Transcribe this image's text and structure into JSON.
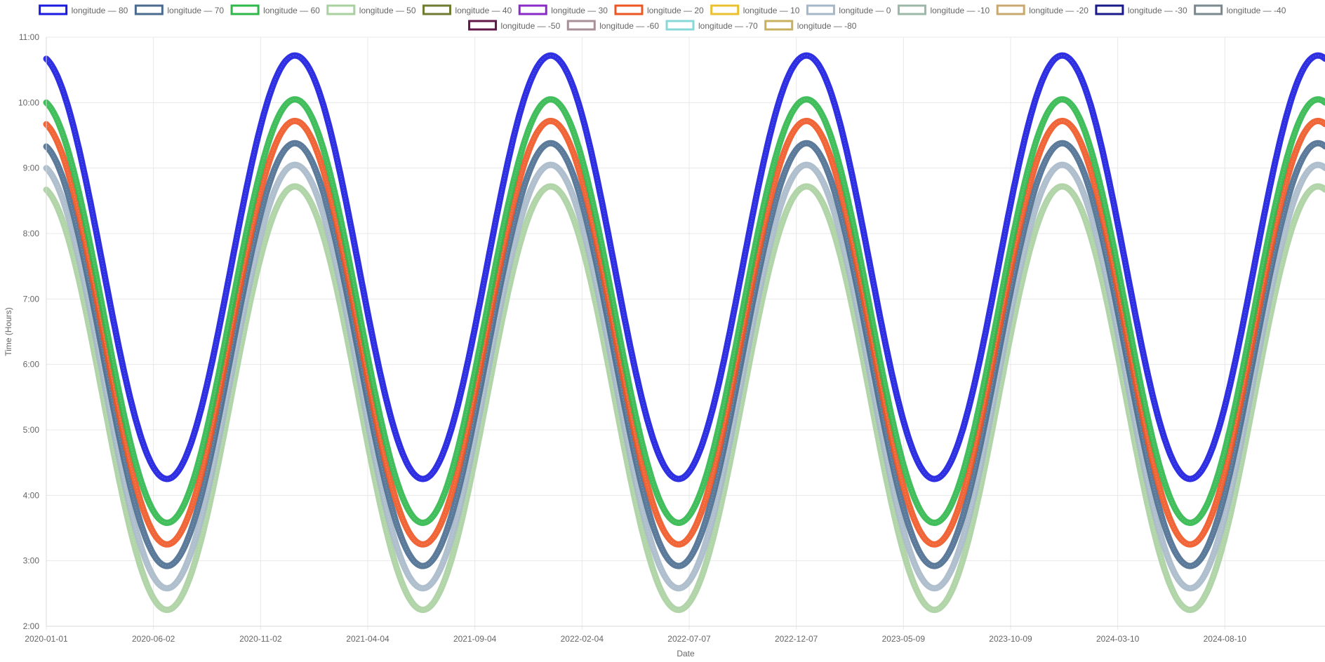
{
  "chart_data": {
    "type": "scatter",
    "xlabel": "Date",
    "ylabel": "Time (Hours)",
    "x_range": [
      "2020-01-01",
      "2024-12-31"
    ],
    "ylim": [
      2,
      11
    ],
    "y_ticks": [
      "2:00",
      "3:00",
      "4:00",
      "5:00",
      "6:00",
      "7:00",
      "8:00",
      "9:00",
      "10:00",
      "11:00"
    ],
    "x_ticks": [
      "2020-01-01",
      "2020-06-02",
      "2020-11-02",
      "2021-04-04",
      "2021-09-04",
      "2022-02-04",
      "2022-07-07",
      "2022-12-07",
      "2023-05-09",
      "2023-10-09",
      "2024-03-10",
      "2024-08-10"
    ],
    "grid": true,
    "legend_position": "top",
    "waveform": {
      "period_days": 365.25,
      "peak_dates": [
        "2020-12-21",
        "2021-12-21",
        "2022-12-21",
        "2023-12-21",
        "2024-12-21"
      ],
      "trough_dates": [
        "2020-06-21",
        "2021-06-21",
        "2022-06-21",
        "2023-06-21",
        "2024-06-21"
      ]
    },
    "series": [
      {
        "name": "longitude — 80",
        "color": "#1a1ae0",
        "min": 4.25,
        "max": 10.72,
        "visible": true
      },
      {
        "name": "longitude — 70",
        "color": "#4a6b8f",
        "min": 2.92,
        "max": 9.38,
        "visible": true
      },
      {
        "name": "longitude — 60",
        "color": "#2eb84a",
        "min": 3.58,
        "max": 10.05,
        "visible": true
      },
      {
        "name": "longitude — 50",
        "color": "#a8d0a0",
        "min": 2.25,
        "max": 8.72,
        "visible": true
      },
      {
        "name": "longitude — 40",
        "color": "#707a30",
        "min": 0,
        "max": 0,
        "visible": false
      },
      {
        "name": "longitude — 30",
        "color": "#8a2bc8",
        "min": 0,
        "max": 0,
        "visible": false
      },
      {
        "name": "longitude — 20",
        "color": "#ee5522",
        "min": 3.25,
        "max": 9.72,
        "visible": true
      },
      {
        "name": "longitude — 10",
        "color": "#e8c030",
        "min": 0,
        "max": 0,
        "visible": false
      },
      {
        "name": "longitude — 0",
        "color": "#a6b8c8",
        "min": 2.58,
        "max": 9.05,
        "visible": true
      },
      {
        "name": "longitude — -10",
        "color": "#9cb8a8",
        "min": 0,
        "max": 0,
        "visible": false
      },
      {
        "name": "longitude — -20",
        "color": "#c8a870",
        "min": 0,
        "max": 0,
        "visible": false
      },
      {
        "name": "longitude — -30",
        "color": "#1a1a8a",
        "min": 0,
        "max": 0,
        "visible": false
      },
      {
        "name": "longitude — -40",
        "color": "#7a8890",
        "min": 0,
        "max": 0,
        "visible": false
      },
      {
        "name": "longitude — -50",
        "color": "#601848",
        "min": 0,
        "max": 0,
        "visible": false
      },
      {
        "name": "longitude — -60",
        "color": "#a89098",
        "min": 0,
        "max": 0,
        "visible": false
      },
      {
        "name": "longitude — -70",
        "color": "#88d8d8",
        "min": 0,
        "max": 0,
        "visible": false
      },
      {
        "name": "longitude — -80",
        "color": "#c8b060",
        "min": 0,
        "max": 0,
        "visible": false
      }
    ]
  }
}
